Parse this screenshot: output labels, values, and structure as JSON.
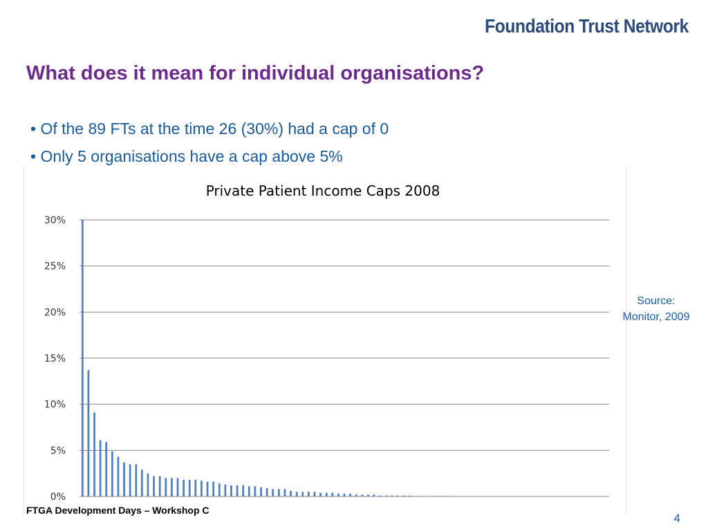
{
  "header": {
    "logo_text": "Foundation Trust Network",
    "title": "What does it mean for individual organisations?"
  },
  "bullets": [
    "• Of the 89 FTs at the time 26 (30%) had a cap of 0",
    "• Only 5 organisations have a cap above 5%"
  ],
  "source": {
    "line1": "Source:",
    "line2": "Monitor, 2009"
  },
  "footer": {
    "text": "FTGA Development Days – Workshop C",
    "page_number": "4"
  },
  "colors": {
    "title": "#6a2b8c",
    "bullet_text": "#1a5a9a",
    "bar": "#4f7fbf",
    "gridline": "#868686"
  },
  "chart_data": {
    "type": "bar",
    "title": "Private Patient Income Caps 2008",
    "xlabel": "",
    "ylabel": "",
    "ylim": [
      0,
      0.3
    ],
    "yticks": [
      {
        "value": 0,
        "label": "0%"
      },
      {
        "value": 0.05,
        "label": "5%"
      },
      {
        "value": 0.1,
        "label": "10%"
      },
      {
        "value": 0.15,
        "label": "15%"
      },
      {
        "value": 0.2,
        "label": "20%"
      },
      {
        "value": 0.25,
        "label": "25%"
      },
      {
        "value": 0.3,
        "label": "30%"
      }
    ],
    "grid": true,
    "legend": "none",
    "category_count": 89,
    "values": [
      0.3,
      0.137,
      0.091,
      0.061,
      0.059,
      0.049,
      0.043,
      0.037,
      0.035,
      0.035,
      0.029,
      0.025,
      0.022,
      0.022,
      0.02,
      0.02,
      0.02,
      0.018,
      0.018,
      0.018,
      0.017,
      0.016,
      0.016,
      0.014,
      0.013,
      0.012,
      0.012,
      0.012,
      0.011,
      0.011,
      0.01,
      0.009,
      0.008,
      0.008,
      0.008,
      0.006,
      0.005,
      0.005,
      0.005,
      0.005,
      0.004,
      0.004,
      0.004,
      0.003,
      0.003,
      0.003,
      0.002,
      0.002,
      0.002,
      0.002,
      0.001,
      0.001,
      0.001,
      0.001,
      0.001,
      0.001,
      0.0005,
      0.0005,
      0.0005,
      0.0005,
      0.0005,
      0.0005,
      0.0005,
      0,
      0,
      0,
      0,
      0,
      0,
      0,
      0,
      0,
      0,
      0,
      0,
      0,
      0,
      0,
      0,
      0,
      0,
      0,
      0,
      0,
      0,
      0,
      0,
      0,
      0
    ]
  }
}
